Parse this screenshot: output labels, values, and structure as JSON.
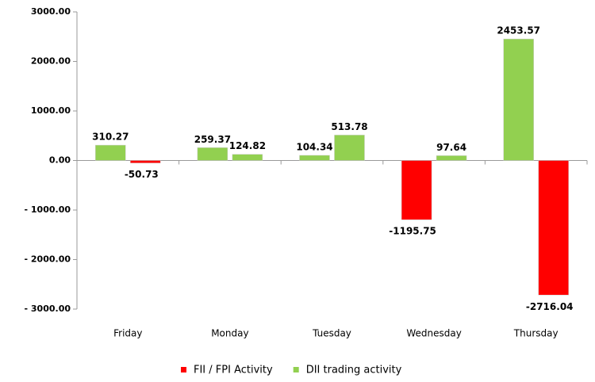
{
  "chart_data": {
    "type": "bar",
    "categories": [
      "Friday",
      "Monday",
      "Tuesday",
      "Wednesday",
      "Thursday"
    ],
    "series": [
      {
        "name": "FII / FPI Activity",
        "color": "#ff0000",
        "colors": [
          "#92d050",
          "#92d050",
          "#92d050",
          "#ff0000",
          "#92d050"
        ],
        "values": [
          310.27,
          259.37,
          104.34,
          -1195.75,
          2453.57
        ]
      },
      {
        "name": "DII trading activity",
        "color": "#92d050",
        "colors": [
          "#ff0000",
          "#92d050",
          "#92d050",
          "#92d050",
          "#ff0000"
        ],
        "values": [
          -50.73,
          124.82,
          513.78,
          97.64,
          -2716.04
        ]
      }
    ],
    "ylim": [
      -3000,
      3000
    ],
    "yticks": [
      {
        "value": -3000,
        "label": "- 3000.00"
      },
      {
        "value": -2000,
        "label": "- 2000.00"
      },
      {
        "value": -1000,
        "label": "- 1000.00"
      },
      {
        "value": 0,
        "label": "0.00"
      },
      {
        "value": 1000,
        "label": "1000.00"
      },
      {
        "value": 2000,
        "label": "2000.00"
      },
      {
        "value": 3000,
        "label": "3000.00"
      }
    ],
    "legend": "bottom"
  }
}
